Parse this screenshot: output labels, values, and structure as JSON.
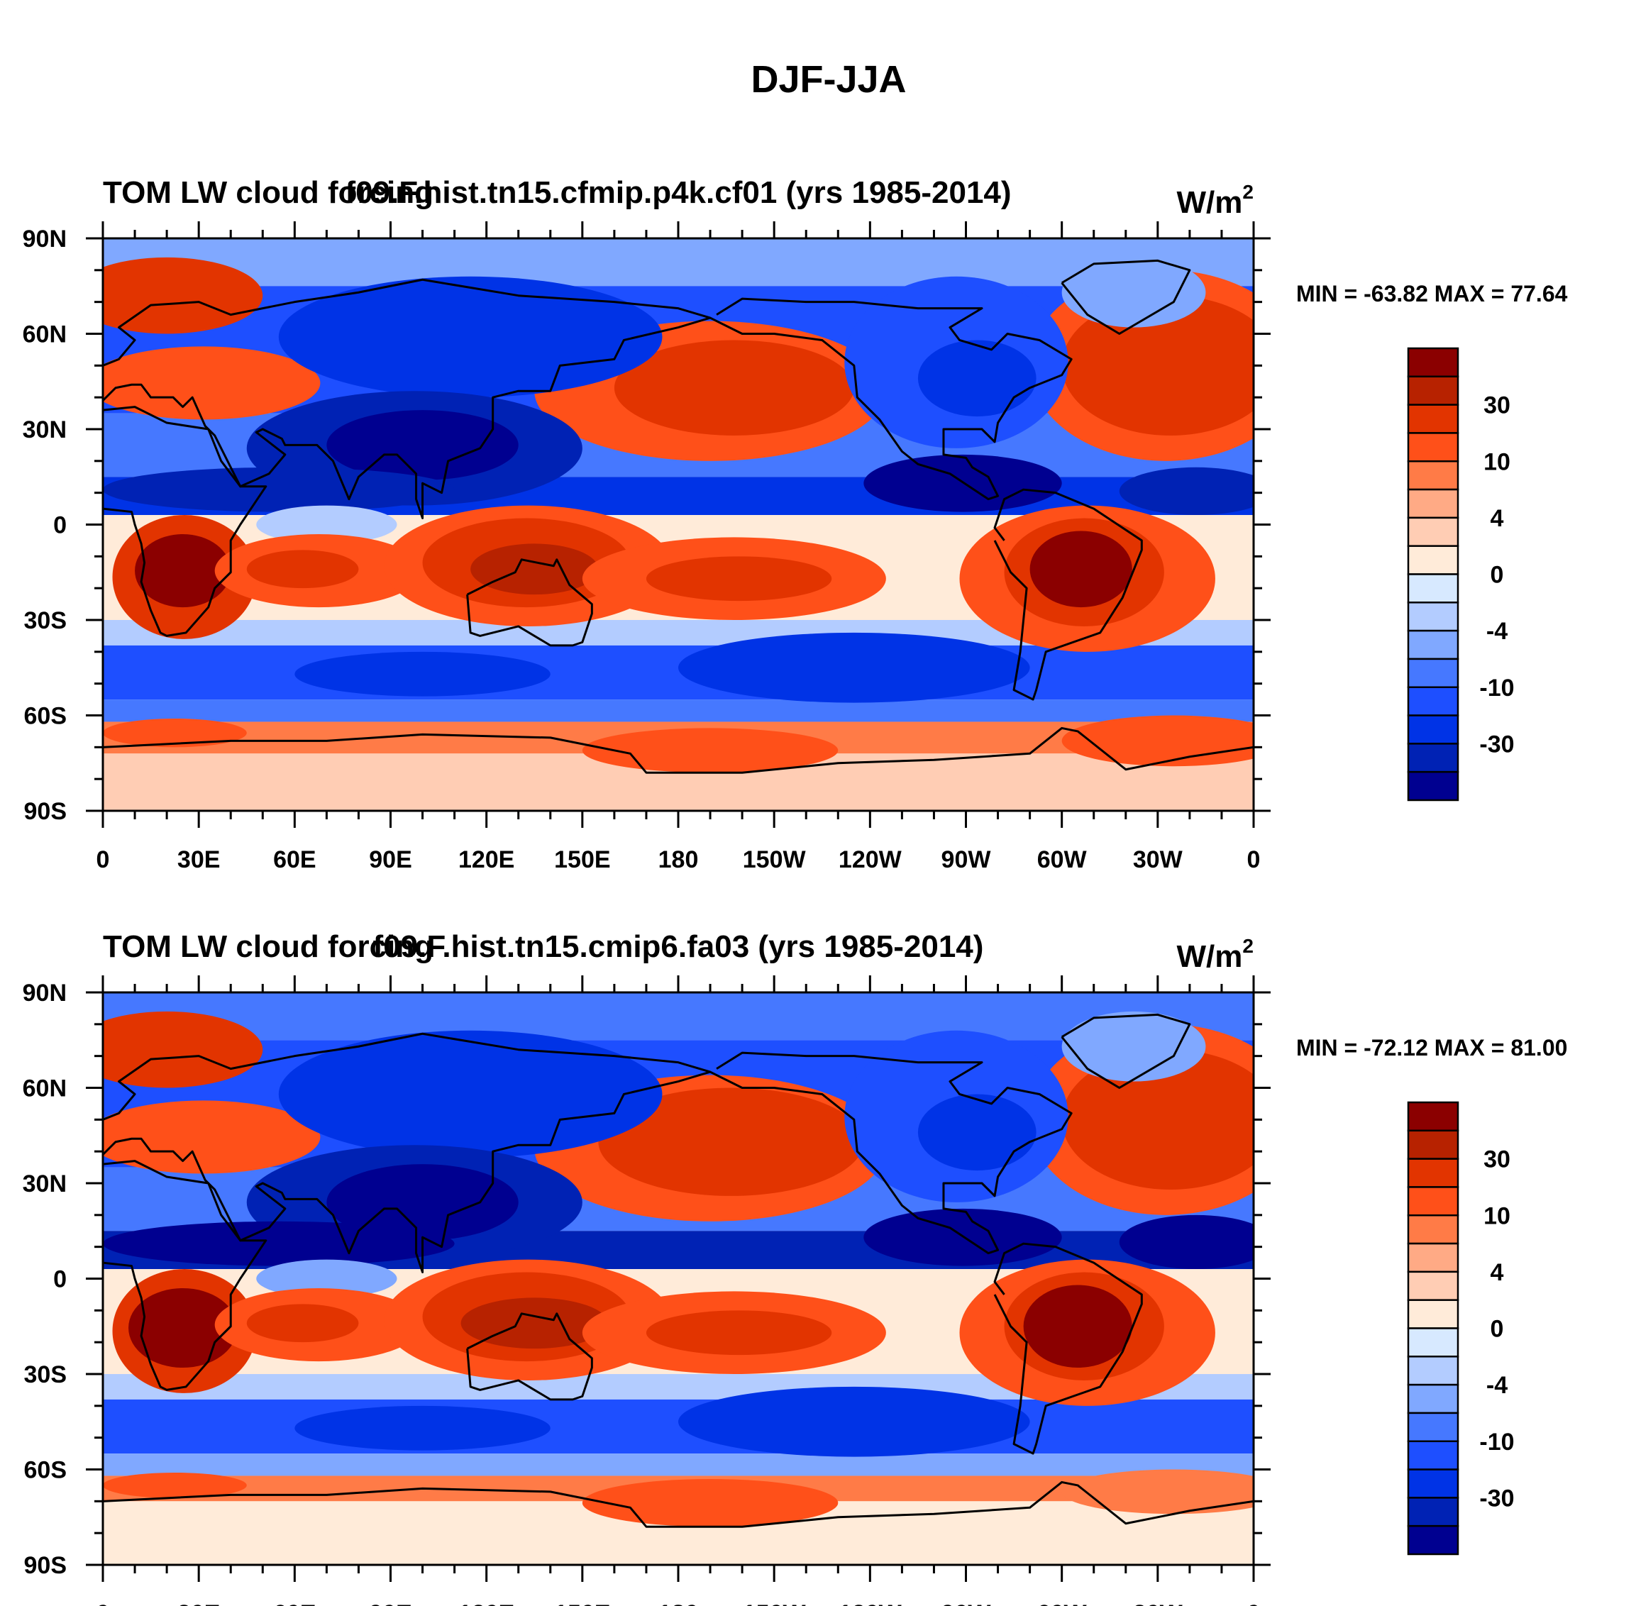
{
  "title": "DJF-JJA",
  "chart_data": {
    "type": "heatmap",
    "title": "DJF-JJA",
    "xlabel": "",
    "ylabel": "",
    "xlim": [
      0,
      360
    ],
    "ylim": [
      -90,
      90
    ],
    "x_ticks": [
      "0",
      "30E",
      "60E",
      "90E",
      "120E",
      "150E",
      "180",
      "150W",
      "120W",
      "90W",
      "60W",
      "30W",
      "0"
    ],
    "y_ticks": [
      "90N",
      "60N",
      "30N",
      "0",
      "30S",
      "60S",
      "90S"
    ],
    "colorbar": {
      "colors": [
        "#8b0000",
        "#b72200",
        "#e23400",
        "#ff5019",
        "#ff7b47",
        "#ffaa85",
        "#ffcdb4",
        "#ffebd9",
        "#d7e9ff",
        "#b3ccff",
        "#80a8ff",
        "#4678ff",
        "#1e4fff",
        "#0033e6",
        "#0022b4",
        "#000090"
      ],
      "labels": [
        "30",
        "10",
        "4",
        "0",
        "-4",
        "-10",
        "-30"
      ]
    },
    "panels": [
      {
        "left_title": "TOM LW cloud forcing",
        "center_title": "f09.F.hist.tn15.cfmip.p4k.cf01 (yrs 1985-2014)",
        "units_base": "W/m",
        "units_sup": "2",
        "minmax": "MIN = -63.82 MAX =  77.64",
        "min": -63.82,
        "max": 77.64,
        "field": [
          {
            "s": "rect",
            "lon": [
              0,
              360
            ],
            "lat": [
              90,
              75
            ],
            "lv": 10
          },
          {
            "s": "rect",
            "lon": [
              0,
              360
            ],
            "lat": [
              75,
              35
            ],
            "lv": 12
          },
          {
            "s": "rect",
            "lon": [
              0,
              360
            ],
            "lat": [
              35,
              15
            ],
            "lv": 11
          },
          {
            "s": "rect",
            "lon": [
              0,
              360
            ],
            "lat": [
              15,
              3
            ],
            "lv": 13
          },
          {
            "s": "rect",
            "lon": [
              0,
              360
            ],
            "lat": [
              3,
              -30
            ],
            "lv": 7
          },
          {
            "s": "rect",
            "lon": [
              0,
              360
            ],
            "lat": [
              -30,
              -38
            ],
            "lv": 9
          },
          {
            "s": "rect",
            "lon": [
              0,
              360
            ],
            "lat": [
              -38,
              -55
            ],
            "lv": 12
          },
          {
            "s": "rect",
            "lon": [
              0,
              360
            ],
            "lat": [
              -55,
              -62
            ],
            "lv": 11
          },
          {
            "s": "rect",
            "lon": [
              0,
              360
            ],
            "lat": [
              -62,
              -72
            ],
            "lv": 4
          },
          {
            "s": "rect",
            "lon": [
              0,
              360
            ],
            "lat": [
              -72,
              -90
            ],
            "lv": 6
          },
          {
            "s": "ell",
            "lon": [
              -10,
              50
            ],
            "lat": [
              84,
              60
            ],
            "lv": 2
          },
          {
            "s": "ell",
            "lon": [
              -5,
              68
            ],
            "lat": [
              56,
              33
            ],
            "lv": 3
          },
          {
            "s": "ell",
            "lon": [
              290,
              375
            ],
            "lat": [
              80,
              20
            ],
            "lv": 3
          },
          {
            "s": "ell",
            "lon": [
              300,
              368
            ],
            "lat": [
              72,
              28
            ],
            "lv": 2
          },
          {
            "s": "ell",
            "lon": [
              300,
              345
            ],
            "lat": [
              84,
              62
            ],
            "lv": 10
          },
          {
            "s": "ell",
            "lon": [
              135,
              245
            ],
            "lat": [
              64,
              20
            ],
            "lv": 3
          },
          {
            "s": "ell",
            "lon": [
              160,
              235
            ],
            "lat": [
              58,
              28
            ],
            "lv": 2
          },
          {
            "s": "ell",
            "lon": [
              55,
              175
            ],
            "lat": [
              78,
              40
            ],
            "lv": 13
          },
          {
            "s": "ell",
            "lon": [
              45,
              150
            ],
            "lat": [
              42,
              6
            ],
            "lv": 14
          },
          {
            "s": "ell",
            "lon": [
              70,
              130
            ],
            "lat": [
              36,
              14
            ],
            "lv": 15
          },
          {
            "s": "ell",
            "lon": [
              232,
              302
            ],
            "lat": [
              78,
              24
            ],
            "lv": 12
          },
          {
            "s": "ell",
            "lon": [
              255,
              292
            ],
            "lat": [
              58,
              34
            ],
            "lv": 13
          },
          {
            "s": "ell",
            "lon": [
              238,
              300
            ],
            "lat": [
              22,
              4
            ],
            "lv": 15
          },
          {
            "s": "ell",
            "lon": [
              318,
              366
            ],
            "lat": [
              18,
              3
            ],
            "lv": 14
          },
          {
            "s": "ell",
            "lon": [
              0,
              110
            ],
            "lat": [
              18,
              4
            ],
            "lv": 14
          },
          {
            "s": "ell",
            "lon": [
              48,
              92
            ],
            "lat": [
              6,
              -6
            ],
            "lv": 9
          },
          {
            "s": "ell",
            "lon": [
              3,
              48
            ],
            "lat": [
              3,
              -36
            ],
            "lv": 2
          },
          {
            "s": "ell",
            "lon": [
              10,
              40
            ],
            "lat": [
              -3,
              -26
            ],
            "lv": 0
          },
          {
            "s": "ell",
            "lon": [
              35,
              100
            ],
            "lat": [
              -3,
              -26
            ],
            "lv": 3
          },
          {
            "s": "ell",
            "lon": [
              45,
              80
            ],
            "lat": [
              -8,
              -20
            ],
            "lv": 2
          },
          {
            "s": "ell",
            "lon": [
              88,
              178
            ],
            "lat": [
              6,
              -32
            ],
            "lv": 3
          },
          {
            "s": "ell",
            "lon": [
              100,
              165
            ],
            "lat": [
              2,
              -26
            ],
            "lv": 2
          },
          {
            "s": "ell",
            "lon": [
              115,
              155
            ],
            "lat": [
              -6,
              -22
            ],
            "lv": 1
          },
          {
            "s": "ell",
            "lon": [
              150,
              245
            ],
            "lat": [
              -4,
              -30
            ],
            "lv": 3
          },
          {
            "s": "ell",
            "lon": [
              170,
              228
            ],
            "lat": [
              -10,
              -24
            ],
            "lv": 2
          },
          {
            "s": "ell",
            "lon": [
              268,
              348
            ],
            "lat": [
              6,
              -40
            ],
            "lv": 3
          },
          {
            "s": "ell",
            "lon": [
              282,
              332
            ],
            "lat": [
              2,
              -32
            ],
            "lv": 2
          },
          {
            "s": "ell",
            "lon": [
              290,
              322
            ],
            "lat": [
              -2,
              -26
            ],
            "lv": 0
          },
          {
            "s": "ell",
            "lon": [
              180,
              290
            ],
            "lat": [
              -34,
              -56
            ],
            "lv": 13
          },
          {
            "s": "ell",
            "lon": [
              60,
              140
            ],
            "lat": [
              -40,
              -54
            ],
            "lv": 13
          },
          {
            "s": "ell",
            "lon": [
              150,
              230
            ],
            "lat": [
              -64,
              -78
            ],
            "lv": 3
          },
          {
            "s": "ell",
            "lon": [
              300,
              370
            ],
            "lat": [
              -60,
              -76
            ],
            "lv": 3
          },
          {
            "s": "ell",
            "lon": [
              0,
              45
            ],
            "lat": [
              -61,
              -70
            ],
            "lv": 3
          }
        ]
      },
      {
        "left_title": "TOM LW cloud forcing",
        "center_title": "f09.F.hist.tn15.cmip6.fa03 (yrs 1985-2014)",
        "units_base": "W/m",
        "units_sup": "2",
        "minmax": "MIN = -72.12 MAX =  81.00",
        "min": -72.12,
        "max": 81.0,
        "field": [
          {
            "s": "rect",
            "lon": [
              0,
              360
            ],
            "lat": [
              90,
              75
            ],
            "lv": 11
          },
          {
            "s": "rect",
            "lon": [
              0,
              360
            ],
            "lat": [
              75,
              35
            ],
            "lv": 12
          },
          {
            "s": "rect",
            "lon": [
              0,
              360
            ],
            "lat": [
              35,
              15
            ],
            "lv": 11
          },
          {
            "s": "rect",
            "lon": [
              0,
              360
            ],
            "lat": [
              15,
              3
            ],
            "lv": 14
          },
          {
            "s": "rect",
            "lon": [
              0,
              360
            ],
            "lat": [
              3,
              -30
            ],
            "lv": 7
          },
          {
            "s": "rect",
            "lon": [
              0,
              360
            ],
            "lat": [
              -30,
              -38
            ],
            "lv": 9
          },
          {
            "s": "rect",
            "lon": [
              0,
              360
            ],
            "lat": [
              -38,
              -55
            ],
            "lv": 12
          },
          {
            "s": "rect",
            "lon": [
              0,
              360
            ],
            "lat": [
              -55,
              -62
            ],
            "lv": 10
          },
          {
            "s": "rect",
            "lon": [
              0,
              360
            ],
            "lat": [
              -62,
              -70
            ],
            "lv": 4
          },
          {
            "s": "rect",
            "lon": [
              0,
              360
            ],
            "lat": [
              -70,
              -90
            ],
            "lv": 7
          },
          {
            "s": "ell",
            "lon": [
              -10,
              50
            ],
            "lat": [
              84,
              60
            ],
            "lv": 2
          },
          {
            "s": "ell",
            "lon": [
              -5,
              68
            ],
            "lat": [
              56,
              33
            ],
            "lv": 3
          },
          {
            "s": "ell",
            "lon": [
              290,
              375
            ],
            "lat": [
              80,
              20
            ],
            "lv": 3
          },
          {
            "s": "ell",
            "lon": [
              300,
              368
            ],
            "lat": [
              72,
              28
            ],
            "lv": 2
          },
          {
            "s": "ell",
            "lon": [
              300,
              345
            ],
            "lat": [
              84,
              62
            ],
            "lv": 10
          },
          {
            "s": "ell",
            "lon": [
              135,
              245
            ],
            "lat": [
              64,
              18
            ],
            "lv": 3
          },
          {
            "s": "ell",
            "lon": [
              155,
              238
            ],
            "lat": [
              60,
              26
            ],
            "lv": 2
          },
          {
            "s": "ell",
            "lon": [
              55,
              175
            ],
            "lat": [
              78,
              38
            ],
            "lv": 13
          },
          {
            "s": "ell",
            "lon": [
              45,
              150
            ],
            "lat": [
              42,
              6
            ],
            "lv": 14
          },
          {
            "s": "ell",
            "lon": [
              70,
              130
            ],
            "lat": [
              36,
              12
            ],
            "lv": 15
          },
          {
            "s": "ell",
            "lon": [
              232,
              302
            ],
            "lat": [
              78,
              24
            ],
            "lv": 12
          },
          {
            "s": "ell",
            "lon": [
              255,
              292
            ],
            "lat": [
              58,
              34
            ],
            "lv": 13
          },
          {
            "s": "ell",
            "lon": [
              238,
              300
            ],
            "lat": [
              22,
              4
            ],
            "lv": 15
          },
          {
            "s": "ell",
            "lon": [
              318,
              366
            ],
            "lat": [
              20,
              3
            ],
            "lv": 15
          },
          {
            "s": "ell",
            "lon": [
              0,
              110
            ],
            "lat": [
              18,
              4
            ],
            "lv": 15
          },
          {
            "s": "ell",
            "lon": [
              48,
              92
            ],
            "lat": [
              6,
              -6
            ],
            "lv": 10
          },
          {
            "s": "ell",
            "lon": [
              3,
              48
            ],
            "lat": [
              3,
              -36
            ],
            "lv": 2
          },
          {
            "s": "ell",
            "lon": [
              8,
              42
            ],
            "lat": [
              -3,
              -28
            ],
            "lv": 0
          },
          {
            "s": "ell",
            "lon": [
              35,
              100
            ],
            "lat": [
              -3,
              -26
            ],
            "lv": 3
          },
          {
            "s": "ell",
            "lon": [
              45,
              80
            ],
            "lat": [
              -8,
              -20
            ],
            "lv": 2
          },
          {
            "s": "ell",
            "lon": [
              88,
              178
            ],
            "lat": [
              6,
              -32
            ],
            "lv": 3
          },
          {
            "s": "ell",
            "lon": [
              100,
              165
            ],
            "lat": [
              2,
              -26
            ],
            "lv": 2
          },
          {
            "s": "ell",
            "lon": [
              112,
              158
            ],
            "lat": [
              -6,
              -22
            ],
            "lv": 1
          },
          {
            "s": "ell",
            "lon": [
              150,
              245
            ],
            "lat": [
              -4,
              -30
            ],
            "lv": 3
          },
          {
            "s": "ell",
            "lon": [
              170,
              228
            ],
            "lat": [
              -10,
              -24
            ],
            "lv": 2
          },
          {
            "s": "ell",
            "lon": [
              268,
              348
            ],
            "lat": [
              6,
              -40
            ],
            "lv": 3
          },
          {
            "s": "ell",
            "lon": [
              282,
              332
            ],
            "lat": [
              2,
              -32
            ],
            "lv": 2
          },
          {
            "s": "ell",
            "lon": [
              288,
              322
            ],
            "lat": [
              -2,
              -28
            ],
            "lv": 0
          },
          {
            "s": "ell",
            "lon": [
              180,
              290
            ],
            "lat": [
              -34,
              -56
            ],
            "lv": 13
          },
          {
            "s": "ell",
            "lon": [
              60,
              140
            ],
            "lat": [
              -40,
              -54
            ],
            "lv": 13
          },
          {
            "s": "ell",
            "lon": [
              150,
              230
            ],
            "lat": [
              -63,
              -78
            ],
            "lv": 3
          },
          {
            "s": "ell",
            "lon": [
              300,
              370
            ],
            "lat": [
              -60,
              -74
            ],
            "lv": 4
          },
          {
            "s": "ell",
            "lon": [
              0,
              45
            ],
            "lat": [
              -61,
              -69
            ],
            "lv": 3
          }
        ]
      }
    ]
  }
}
